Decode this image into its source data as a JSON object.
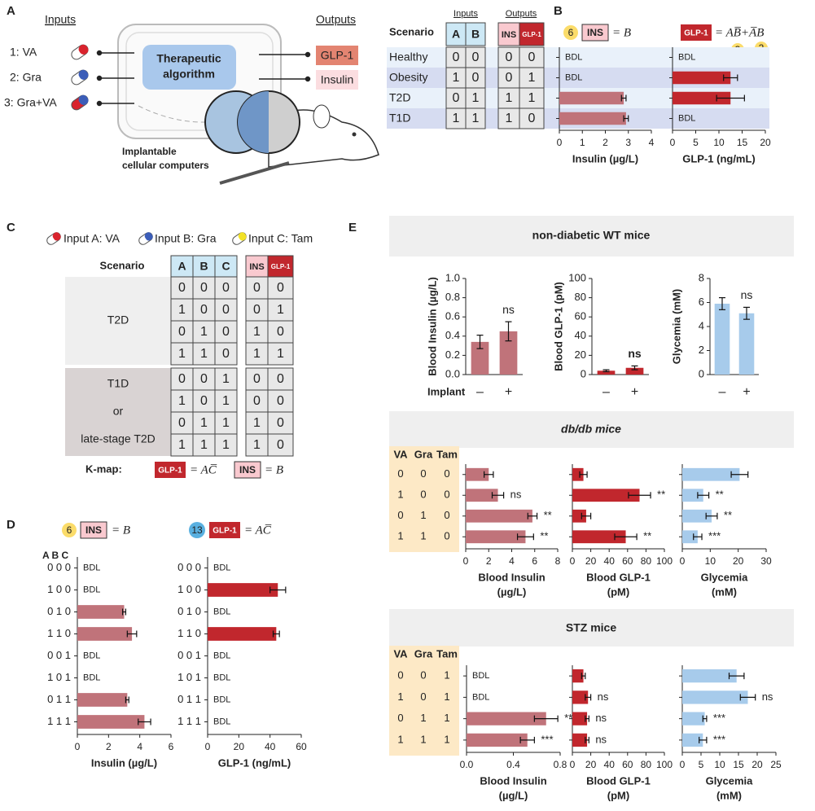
{
  "panels": [
    "A",
    "B",
    "C",
    "D",
    "E"
  ],
  "diagram": {
    "inputs_title": "Inputs",
    "outputs_title": "Outputs",
    "inputs": [
      "1:  VA",
      "2:  Gra",
      "3: Gra+VA"
    ],
    "algorithm": [
      "Therapeutic",
      "algorithm"
    ],
    "outputs": [
      "GLP-1",
      "Insulin"
    ],
    "implant": [
      "Implantable",
      "cellular computers"
    ]
  },
  "truth_table_b": {
    "scenario": "Scenario",
    "inputs": "Inputs",
    "outputs": "Outputs",
    "input_cols": [
      "A",
      "B"
    ],
    "output_cols": [
      "INS",
      "GLP-1"
    ],
    "rows": [
      {
        "name": "Healthy",
        "cells": [
          0,
          0,
          0,
          0
        ]
      },
      {
        "name": "Obesity",
        "cells": [
          1,
          0,
          0,
          1
        ]
      },
      {
        "name": "T2D",
        "cells": [
          0,
          1,
          1,
          1
        ]
      },
      {
        "name": "T1D",
        "cells": [
          1,
          1,
          1,
          0
        ]
      }
    ]
  },
  "formulas_b": {
    "ins_badge": 6,
    "ins": "INS",
    "ins_expr": "= B",
    "glp": "GLP-1",
    "glp_expr": "= AB̅+A̅B",
    "glp_badges": [
      3,
      2
    ]
  },
  "panel_c": {
    "legend": [
      "Input A: VA",
      "Input B: Gra",
      "Input C: Tam"
    ],
    "scenario": "Scenario",
    "input_cols": [
      "A",
      "B",
      "C"
    ],
    "output_cols": [
      "INS",
      "GLP-1"
    ],
    "groups": [
      {
        "labels": [
          "T2D"
        ],
        "rows": [
          [
            0,
            0,
            0,
            0,
            0
          ],
          [
            1,
            0,
            0,
            0,
            1
          ],
          [
            0,
            1,
            0,
            1,
            0
          ],
          [
            1,
            1,
            0,
            1,
            1
          ]
        ]
      },
      {
        "labels": [
          "T1D",
          "or",
          "late-stage T2D"
        ],
        "rows": [
          [
            0,
            0,
            1,
            0,
            0
          ],
          [
            1,
            0,
            1,
            0,
            0
          ],
          [
            0,
            1,
            1,
            1,
            0
          ],
          [
            1,
            1,
            1,
            1,
            0
          ]
        ]
      }
    ],
    "kmap_label": "K-map:",
    "kmap_glp": "GLP-1",
    "kmap_glp_expr": "= AC̅",
    "kmap_ins": "INS",
    "kmap_ins_expr": "= B"
  },
  "formulas_d": {
    "ins_badge": 6,
    "ins": "INS",
    "ins_expr": "= B",
    "glp_badge": 13,
    "glp": "GLP-1",
    "glp_expr": "= AC̅",
    "row_header": "A B C"
  },
  "panel_e": {
    "sections": [
      "non-diabetic WT mice",
      "db/db mice",
      "STZ mice"
    ],
    "implant_label": "Implant",
    "db_table": {
      "cols": [
        "VA",
        "Gra",
        "Tam"
      ],
      "rows": [
        [
          0,
          0,
          0
        ],
        [
          1,
          0,
          0
        ],
        [
          0,
          1,
          0
        ],
        [
          1,
          1,
          0
        ]
      ]
    },
    "stz_table": {
      "cols": [
        "VA",
        "Gra",
        "Tam"
      ],
      "rows": [
        [
          0,
          0,
          1
        ],
        [
          1,
          0,
          1
        ],
        [
          0,
          1,
          1
        ],
        [
          1,
          1,
          1
        ]
      ]
    }
  },
  "chart_data": [
    {
      "type": "hbar",
      "values": [
        null,
        null,
        2.8,
        2.9
      ],
      "value_labels": [
        "BDL",
        "BDL",
        null,
        null
      ],
      "errors": [
        null,
        null,
        0.1,
        0.1
      ],
      "color": "#c0737a",
      "xlim": [
        0,
        4
      ],
      "xticks": [
        0,
        1,
        2,
        3,
        4
      ],
      "xlabel": [
        "Insulin (µg/L)"
      ]
    },
    {
      "type": "hbar",
      "values": [
        null,
        12.5,
        12.5,
        null
      ],
      "value_labels": [
        "BDL",
        null,
        null,
        "BDL"
      ],
      "errors": [
        null,
        1.5,
        3,
        null
      ],
      "color": "#c1272d",
      "xlim": [
        0,
        20
      ],
      "xticks": [
        0,
        5,
        10,
        15,
        20
      ],
      "xlabel": [
        "GLP-1 (ng/mL)"
      ]
    },
    {
      "type": "hbar",
      "categories": [
        "0 0 0",
        "1 0 0",
        "0 1 0",
        "1 1 0",
        "0 0 1",
        "1 0 1",
        "0 1 1",
        "1 1 1"
      ],
      "values": [
        null,
        null,
        3.0,
        3.5,
        null,
        null,
        3.2,
        4.3
      ],
      "value_labels": [
        "BDL",
        "BDL",
        null,
        null,
        "BDL",
        "BDL",
        null,
        null
      ],
      "errors": [
        null,
        null,
        0.1,
        0.3,
        null,
        null,
        0.1,
        0.4
      ],
      "color": "#c0737a",
      "xlim": [
        0,
        6
      ],
      "xticks": [
        0,
        2,
        4,
        6
      ],
      "xlabel": [
        "Insulin (µg/L)"
      ]
    },
    {
      "type": "hbar",
      "categories": [
        "0 0 0",
        "1 0 0",
        "0 1 0",
        "1 1 0",
        "0 0 1",
        "1 0 1",
        "0 1 1",
        "1 1 1"
      ],
      "values": [
        null,
        45,
        null,
        44,
        null,
        null,
        null,
        null
      ],
      "value_labels": [
        "BDL",
        null,
        "BDL",
        null,
        "BDL",
        "BDL",
        "BDL",
        "BDL"
      ],
      "errors": [
        null,
        5,
        null,
        2,
        null,
        null,
        null,
        null
      ],
      "color": "#c1272d",
      "xlim": [
        0,
        60
      ],
      "xticks": [
        0,
        20,
        40,
        60
      ],
      "xlabel": [
        "GLP-1 (ng/mL)"
      ]
    },
    {
      "type": "bar",
      "categories": [
        "–",
        "+"
      ],
      "values": [
        0.34,
        0.45
      ],
      "errors": [
        0.07,
        0.1
      ],
      "annotations": [
        null,
        "ns"
      ],
      "color": "#c0737a",
      "ylim": [
        0,
        1
      ],
      "yticks": [
        {
          "value": 0,
          "label": "0.0"
        },
        0.2,
        0.4,
        0.6,
        0.8,
        {
          "value": 1,
          "label": "1.0"
        }
      ],
      "ylabel": "Blood Insulin (µg/L)"
    },
    {
      "type": "bar",
      "categories": [
        "–",
        "+"
      ],
      "values": [
        4,
        7
      ],
      "errors": [
        1,
        2
      ],
      "annotations": [
        null,
        "ns"
      ],
      "annotation_weight": "bold",
      "color": "#c1272d",
      "ylim": [
        0,
        100
      ],
      "yticks": [
        0,
        20,
        40,
        60,
        80,
        100
      ],
      "ylabel": "Blood GLP-1 (pM)"
    },
    {
      "type": "bar",
      "categories": [
        "–",
        "+"
      ],
      "values": [
        5.9,
        5.1
      ],
      "errors": [
        0.5,
        0.5
      ],
      "annotations": [
        null,
        "ns"
      ],
      "color": "#a7cbeb",
      "ylim": [
        0,
        8
      ],
      "yticks": [
        0,
        2,
        4,
        6,
        8
      ],
      "ylabel": "Glycemia (mM)"
    },
    {
      "type": "hbar",
      "values": [
        2.0,
        2.8,
        5.8,
        5.2
      ],
      "errors": [
        0.4,
        0.5,
        0.4,
        0.7
      ],
      "annotations": [
        null,
        "ns",
        "**",
        "**"
      ],
      "color": "#c0737a",
      "xlim": [
        0,
        8
      ],
      "xticks": [
        0,
        2,
        4,
        6,
        8
      ],
      "xlabel": [
        "Blood Insulin",
        "(µg/L)"
      ]
    },
    {
      "type": "hbar",
      "values": [
        12,
        73,
        15,
        58
      ],
      "errors": [
        4,
        12,
        5,
        12
      ],
      "annotations": [
        null,
        "**",
        null,
        "**"
      ],
      "color": "#c1272d",
      "xlim": [
        0,
        100
      ],
      "xticks": [
        0,
        20,
        40,
        60,
        80,
        100
      ],
      "xlabel": [
        "Blood GLP-1",
        "(pM)"
      ]
    },
    {
      "type": "hbar",
      "values": [
        20.5,
        7.5,
        10.5,
        5.5
      ],
      "errors": [
        3,
        2,
        2,
        1.5
      ],
      "annotations": [
        null,
        "**",
        "**",
        "***"
      ],
      "color": "#a7cbeb",
      "xlim": [
        0,
        30
      ],
      "xticks": [
        0,
        10,
        20,
        30
      ],
      "xlabel": [
        "Glycemia",
        "(mM)"
      ]
    },
    {
      "type": "hbar",
      "values": [
        null,
        null,
        0.68,
        0.52
      ],
      "value_labels": [
        "BDL",
        "BDL",
        null,
        null
      ],
      "errors": [
        null,
        null,
        0.1,
        0.06
      ],
      "annotations": [
        null,
        null,
        "***",
        "***"
      ],
      "color": "#c0737a",
      "xlim": [
        0,
        0.8
      ],
      "xticks": [
        {
          "value": 0,
          "label": "0.0"
        },
        0.4,
        0.8
      ],
      "xlabel": [
        "Blood Insulin",
        "(µg/L)"
      ]
    },
    {
      "type": "hbar",
      "values": [
        12,
        17,
        16,
        16
      ],
      "errors": [
        2,
        3,
        2,
        2
      ],
      "annotations": [
        null,
        "ns",
        "ns",
        "ns"
      ],
      "color": "#c1272d",
      "xlim": [
        0,
        100
      ],
      "xticks": [
        0,
        20,
        40,
        60,
        80,
        100
      ],
      "xlabel": [
        "Blood GLP-1",
        "(pM)"
      ]
    },
    {
      "type": "hbar",
      "values": [
        14.5,
        17.5,
        6,
        5.5
      ],
      "errors": [
        2,
        2,
        0.5,
        1
      ],
      "annotations": [
        null,
        "ns",
        "***",
        "***"
      ],
      "color": "#a7cbeb",
      "xlim": [
        0,
        25
      ],
      "xticks": [
        0,
        5,
        10,
        15,
        20,
        25
      ],
      "xlabel": [
        "Glycemia",
        "(mM)"
      ]
    }
  ]
}
